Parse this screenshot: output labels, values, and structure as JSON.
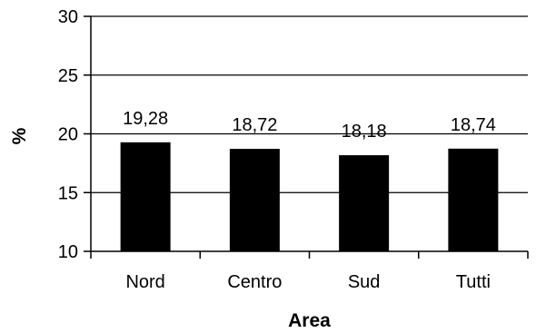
{
  "chart_data": {
    "type": "bar",
    "categories": [
      "Nord",
      "Centro",
      "Sud",
      "Tutti"
    ],
    "values": [
      19.28,
      18.72,
      18.18,
      18.74
    ],
    "data_labels": [
      "19,28",
      "18,72",
      "18,18",
      "18,74"
    ],
    "xlabel": "Area",
    "ylabel": "%",
    "ylim": [
      10,
      30
    ],
    "yticks": [
      10,
      15,
      20,
      25,
      30
    ],
    "ytick_labels": [
      "10",
      "15",
      "20",
      "25",
      "30"
    ],
    "grid": true,
    "legend": "none",
    "bar_color": "#000000"
  }
}
